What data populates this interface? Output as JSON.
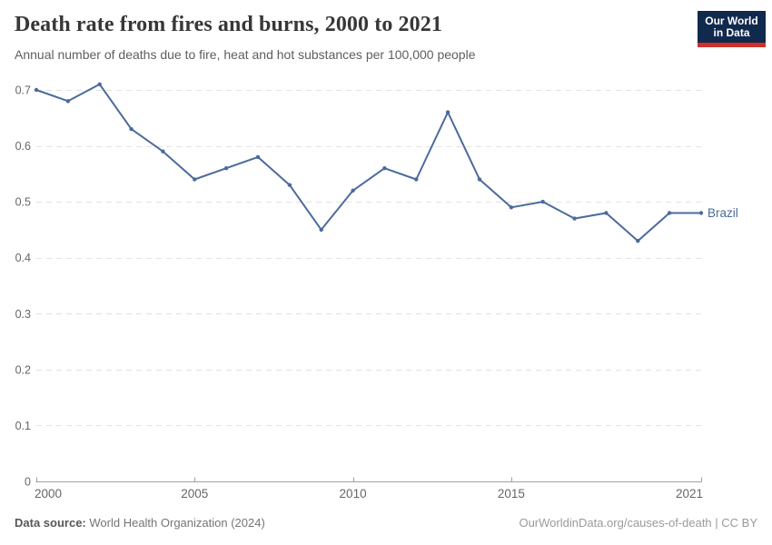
{
  "header": {
    "title": "Death rate from fires and burns, 2000 to 2021",
    "subtitle": "Annual number of deaths due to fire, heat and hot substances per 100,000 people",
    "logo_line1": "Our World",
    "logo_line2": "in Data"
  },
  "chart_data": {
    "type": "line",
    "title": "Death rate from fires and burns, 2000 to 2021",
    "xlabel": "",
    "ylabel": "",
    "x": [
      2000,
      2001,
      2002,
      2003,
      2004,
      2005,
      2006,
      2007,
      2008,
      2009,
      2010,
      2011,
      2012,
      2013,
      2014,
      2015,
      2016,
      2017,
      2018,
      2019,
      2020,
      2021
    ],
    "series": [
      {
        "name": "Brazil",
        "color": "#4C6A9C",
        "values": [
          0.7,
          0.68,
          0.71,
          0.63,
          0.59,
          0.54,
          0.56,
          0.58,
          0.53,
          0.45,
          0.52,
          0.56,
          0.54,
          0.66,
          0.54,
          0.49,
          0.5,
          0.47,
          0.48,
          0.43,
          0.48,
          0.48
        ]
      }
    ],
    "xlim": [
      2000,
      2021
    ],
    "ylim": [
      0,
      0.7
    ],
    "xticks": [
      2000,
      2005,
      2010,
      2015,
      2021
    ],
    "xtick_labels": [
      "2000",
      "2005",
      "2010",
      "2015",
      "2021"
    ],
    "yticks": [
      0,
      0.1,
      0.2,
      0.3,
      0.4,
      0.5,
      0.6,
      0.7
    ],
    "ytick_labels": [
      "0",
      "0.1",
      "0.2",
      "0.3",
      "0.4",
      "0.5",
      "0.6",
      "0.7"
    ],
    "grid": "horizontal-dashed",
    "legend": "end-of-line-label",
    "end_label": "Brazil"
  },
  "footer": {
    "source_label": "Data source:",
    "source_value": "World Health Organization (2024)",
    "link": "OurWorldinData.org/causes-of-death | CC BY"
  },
  "colors": {
    "line": "#4C6A9C",
    "grid": "#e2e2e2",
    "axis": "#a1a1a1",
    "tick_label": "#666666",
    "logo_bg": "#12294e",
    "logo_accent": "#cf3028"
  }
}
